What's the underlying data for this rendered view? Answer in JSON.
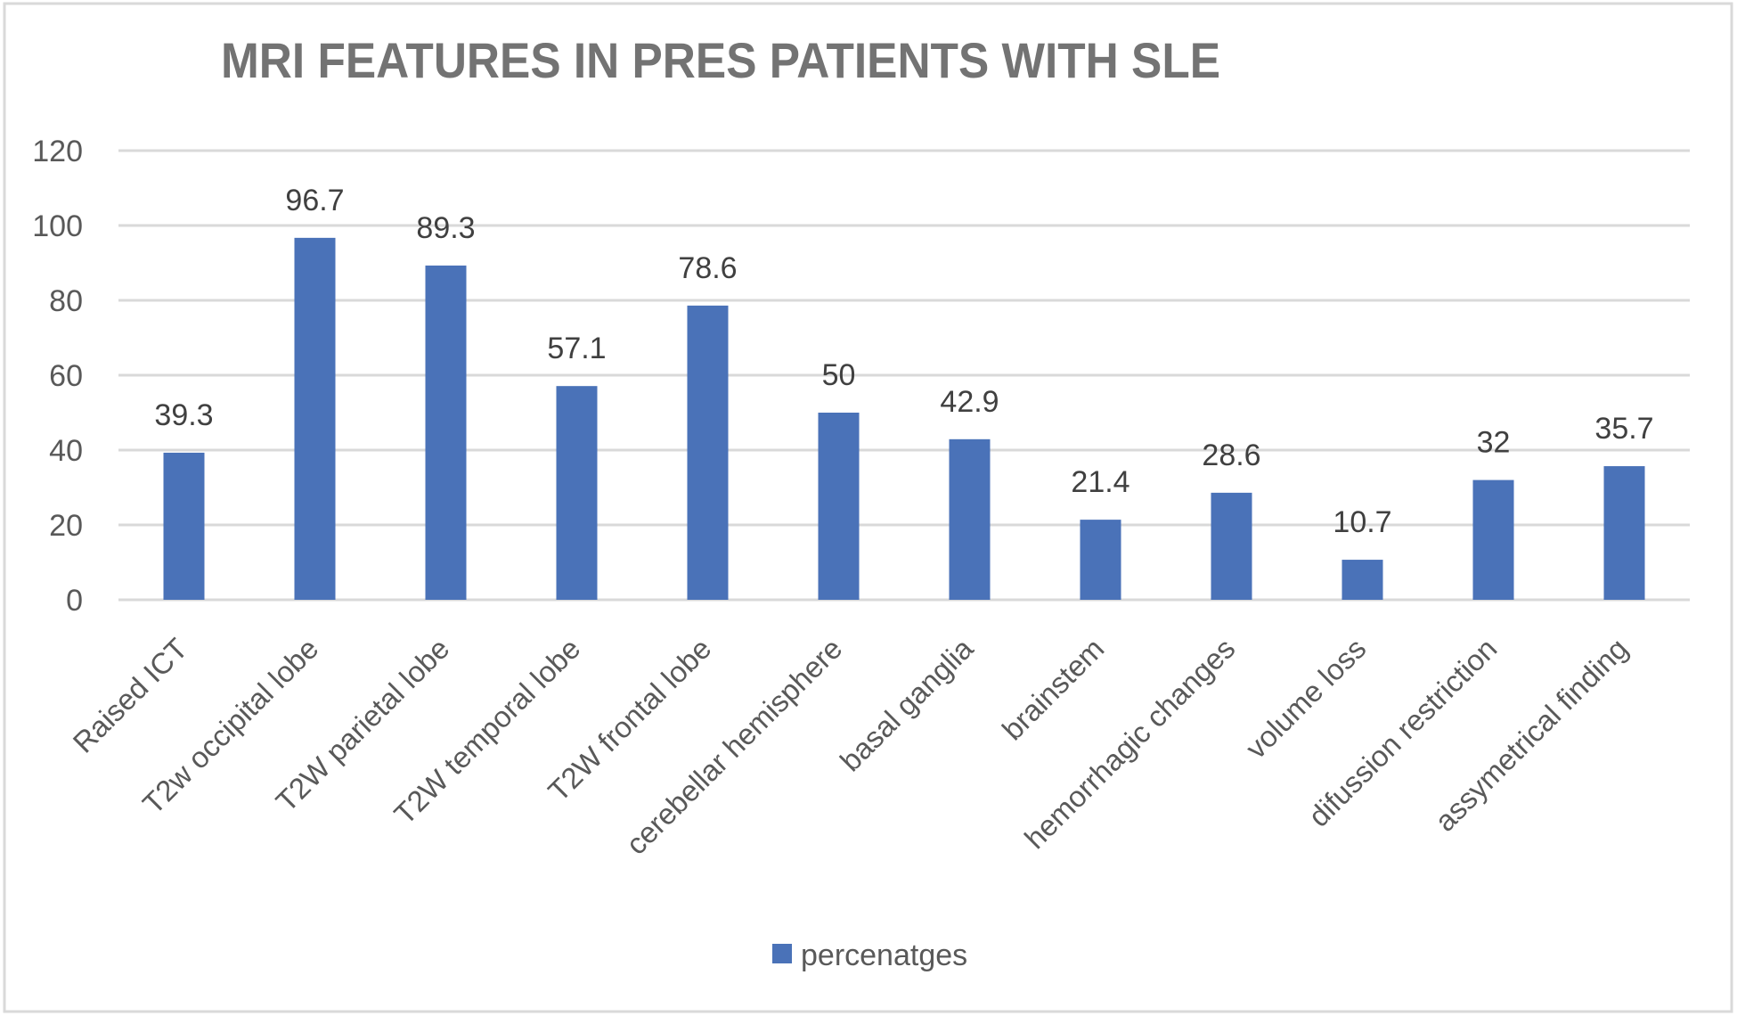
{
  "chart_data": {
    "type": "bar",
    "title": "MRI FEATURES IN PRES PATIENTS WITH SLE",
    "xlabel": "",
    "ylabel": "",
    "categories": [
      "Raised ICT",
      "T2w occipital lobe",
      "T2W parietal lobe",
      "T2W temporal lobe",
      "T2W frontal lobe",
      "cerebellar hemisphere",
      "basal ganglia",
      "brainstem",
      "hemorrhagic changes",
      "volume loss",
      "difussion restriction",
      "assymetrical finding"
    ],
    "series": [
      {
        "name": "percenatges",
        "color": "#4A72B8",
        "values": [
          39.3,
          96.7,
          89.3,
          57.1,
          78.6,
          50,
          42.9,
          21.4,
          28.6,
          10.7,
          32,
          35.7
        ],
        "data_labels": [
          "39.3",
          "96.7",
          "89.3",
          "57.1",
          "78.6",
          "50",
          "42.9",
          "21.4",
          "28.6",
          "10.7",
          "32",
          "35.7"
        ]
      }
    ],
    "ylim": [
      0,
      120
    ],
    "yticks": [
      0,
      20,
      40,
      60,
      80,
      100,
      120
    ],
    "ytick_labels": [
      "0",
      "20",
      "40",
      "60",
      "80",
      "100",
      "120"
    ],
    "grid": true,
    "legend": {
      "position": "bottom",
      "entries": [
        "percenatges"
      ]
    },
    "x_label_rotation": "-45 degrees"
  }
}
